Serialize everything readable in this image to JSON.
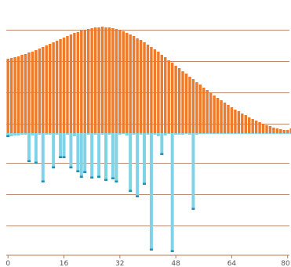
{
  "chart_data": {
    "type": "bar",
    "title": "",
    "xlabel": "",
    "ylabel": "",
    "xlim": [
      0,
      81
    ],
    "ylim": [
      -152,
      136
    ],
    "x_ticks": [
      "0",
      "16",
      "32",
      "48",
      "64",
      "80"
    ],
    "grid": true,
    "colors": {
      "series_a": "#ef7a2a",
      "series_b": "#7fd3e6",
      "series_b_tip": "#1f8fb3",
      "grid": "#b5785a"
    },
    "series": [
      {
        "key": "series_a",
        "x": [
          0,
          1,
          2,
          3,
          4,
          5,
          6,
          7,
          8,
          9,
          10,
          11,
          12,
          13,
          14,
          15,
          16,
          17,
          18,
          19,
          20,
          21,
          22,
          23,
          24,
          25,
          26,
          27,
          28,
          29,
          30,
          31,
          32,
          33,
          34,
          35,
          36,
          37,
          38,
          39,
          40,
          41,
          42,
          43,
          44,
          45,
          46,
          47,
          48,
          49,
          50,
          51,
          52,
          53,
          54,
          55,
          56,
          57,
          58,
          59,
          60,
          61,
          62,
          63,
          64,
          65,
          66,
          67,
          68,
          69,
          70,
          71,
          72,
          73,
          74,
          75,
          76,
          77,
          78,
          79,
          80,
          81
        ],
        "values": [
          95,
          96,
          97,
          98,
          100,
          101,
          103,
          104,
          106,
          108,
          110,
          112,
          114,
          116,
          118,
          120,
          122,
          124,
          126,
          128,
          129,
          131,
          132,
          133,
          134,
          135,
          135,
          136,
          135,
          135,
          134,
          133,
          132,
          130,
          128,
          126,
          124,
          121,
          119,
          116,
          113,
          110,
          107,
          104,
          100,
          97,
          93,
          90,
          86,
          83,
          79,
          76,
          72,
          69,
          65,
          62,
          58,
          55,
          52,
          48,
          45,
          42,
          39,
          36,
          33,
          30,
          28,
          25,
          23,
          20,
          18,
          16,
          14,
          12,
          10,
          9,
          7,
          6,
          5,
          4,
          4,
          6
        ]
      },
      {
        "key": "series_b",
        "x": [
          0,
          1,
          2,
          3,
          4,
          5,
          6,
          7,
          8,
          9,
          10,
          11,
          12,
          13,
          14,
          15,
          16,
          17,
          18,
          19,
          20,
          21,
          22,
          23,
          24,
          25,
          26,
          27,
          28,
          29,
          30,
          31,
          32,
          33,
          34,
          35,
          36,
          37,
          38,
          39,
          40,
          41,
          42,
          43,
          44,
          45,
          46,
          47,
          48,
          49,
          50,
          51,
          52,
          53,
          54,
          55,
          56,
          57,
          58,
          59,
          60,
          61,
          62,
          63,
          64,
          65,
          66,
          67,
          68,
          69,
          70,
          71,
          72,
          73,
          74,
          75,
          76,
          77,
          78,
          79,
          80,
          81
        ],
        "values": [
          -5,
          -4,
          -3,
          -3,
          -2,
          -2,
          -37,
          -3,
          -39,
          -2,
          -63,
          -2,
          -2,
          -45,
          -2,
          -32,
          -32,
          -2,
          -45,
          -4,
          -50,
          -57,
          -51,
          -2,
          -58,
          -2,
          -57,
          -2,
          -61,
          -2,
          -59,
          -63,
          -2,
          -1,
          -3,
          -75,
          -2,
          -82,
          -2,
          -66,
          -2,
          -150,
          -2,
          -4,
          -28,
          -3,
          -1,
          -152,
          -2,
          -2,
          -2,
          -1,
          -2,
          -98,
          -2,
          -1,
          -1,
          -1,
          -1,
          -1,
          -1,
          -1,
          -1,
          -1,
          -1,
          -1,
          -1,
          -1,
          -1,
          -1,
          -1,
          -1,
          -1,
          -1,
          -1,
          -1,
          -1,
          -1,
          -1,
          -1,
          -1,
          -1
        ]
      }
    ]
  }
}
